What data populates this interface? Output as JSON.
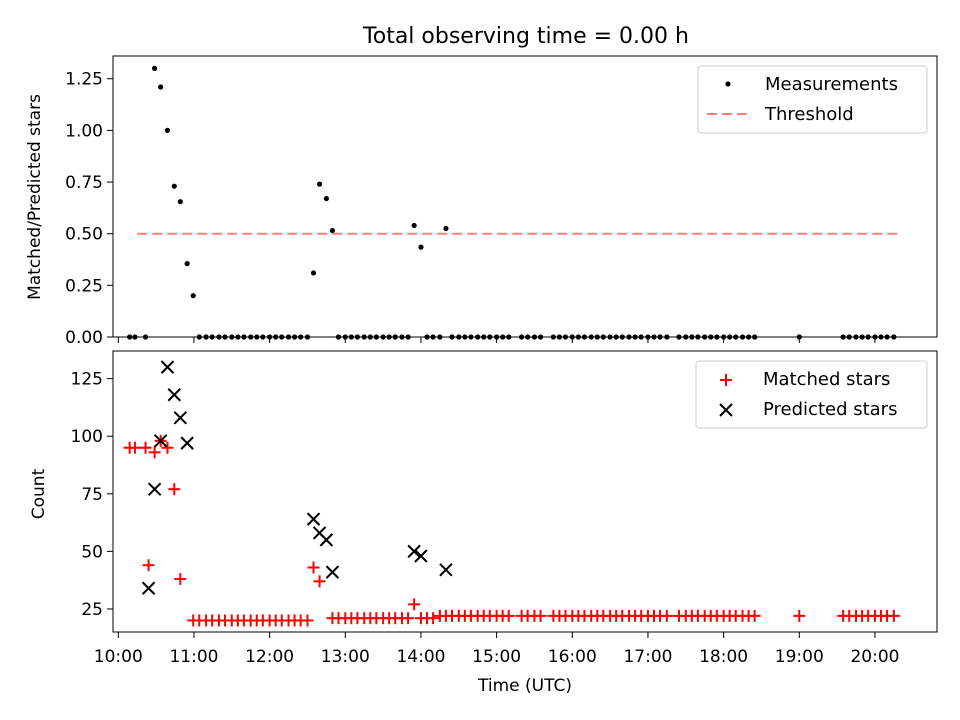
{
  "title": "Total observing time = 0.00 h",
  "chart_data": [
    {
      "type": "scatter",
      "panel": "top",
      "ylabel": "Matched/Predicted stars",
      "xlabel": "",
      "ylim": [
        0,
        1.36
      ],
      "yticks": [
        0.0,
        0.25,
        0.5,
        0.75,
        1.0,
        1.25
      ],
      "ytick_labels": [
        "0.00",
        "0.25",
        "0.50",
        "0.75",
        "1.00",
        "1.25"
      ],
      "xlim_hours": [
        9.93,
        20.82
      ],
      "threshold": {
        "value": 0.5,
        "x_range_hours": [
          10.25,
          20.3
        ],
        "color": "#ff7f7f"
      },
      "legend": {
        "position": "top-right",
        "entries": [
          {
            "label": "Measurements",
            "marker": "dot",
            "color": "#000000"
          },
          {
            "label": "Threshold",
            "marker": "dash",
            "color": "#ff7f7f"
          }
        ]
      },
      "series": [
        {
          "name": "Measurements",
          "color": "#000000",
          "points": [
            [
              10.15,
              0
            ],
            [
              10.22,
              0
            ],
            [
              10.36,
              0
            ],
            [
              10.48,
              1.3
            ],
            [
              10.56,
              1.21
            ],
            [
              10.65,
              1.0
            ],
            [
              10.74,
              0.73
            ],
            [
              10.82,
              0.655
            ],
            [
              10.91,
              0.355
            ],
            [
              10.99,
              0.2
            ],
            [
              11.07,
              0
            ],
            [
              11.16,
              0
            ],
            [
              11.24,
              0
            ],
            [
              11.33,
              0
            ],
            [
              11.41,
              0
            ],
            [
              11.5,
              0
            ],
            [
              11.58,
              0
            ],
            [
              11.66,
              0
            ],
            [
              11.75,
              0
            ],
            [
              11.83,
              0
            ],
            [
              11.91,
              0
            ],
            [
              12.0,
              0
            ],
            [
              12.08,
              0
            ],
            [
              12.16,
              0
            ],
            [
              12.25,
              0
            ],
            [
              12.33,
              0
            ],
            [
              12.41,
              0
            ],
            [
              12.5,
              0
            ],
            [
              12.58,
              0.31
            ],
            [
              12.66,
              0.74
            ],
            [
              12.75,
              0.67
            ],
            [
              12.83,
              0.515
            ],
            [
              12.91,
              0
            ],
            [
              13.0,
              0
            ],
            [
              13.08,
              0
            ],
            [
              13.16,
              0
            ],
            [
              13.25,
              0
            ],
            [
              13.33,
              0
            ],
            [
              13.41,
              0
            ],
            [
              13.5,
              0
            ],
            [
              13.58,
              0
            ],
            [
              13.66,
              0
            ],
            [
              13.75,
              0
            ],
            [
              13.83,
              0
            ],
            [
              13.91,
              0.54
            ],
            [
              14.0,
              0.435
            ],
            [
              14.08,
              0
            ],
            [
              14.16,
              0
            ],
            [
              14.25,
              0
            ],
            [
              14.33,
              0.525
            ],
            [
              14.41,
              0
            ],
            [
              14.5,
              0
            ],
            [
              14.58,
              0
            ],
            [
              14.66,
              0
            ],
            [
              14.75,
              0
            ],
            [
              14.83,
              0
            ],
            [
              14.91,
              0
            ],
            [
              15.0,
              0
            ],
            [
              15.08,
              0
            ],
            [
              15.16,
              0
            ],
            [
              15.33,
              0
            ],
            [
              15.41,
              0
            ],
            [
              15.5,
              0
            ],
            [
              15.58,
              0
            ],
            [
              15.75,
              0
            ],
            [
              15.83,
              0
            ],
            [
              15.91,
              0
            ],
            [
              16.0,
              0
            ],
            [
              16.08,
              0
            ],
            [
              16.16,
              0
            ],
            [
              16.25,
              0
            ],
            [
              16.33,
              0
            ],
            [
              16.41,
              0
            ],
            [
              16.5,
              0
            ],
            [
              16.58,
              0
            ],
            [
              16.66,
              0
            ],
            [
              16.75,
              0
            ],
            [
              16.83,
              0
            ],
            [
              16.91,
              0
            ],
            [
              17.0,
              0
            ],
            [
              17.08,
              0
            ],
            [
              17.16,
              0
            ],
            [
              17.25,
              0
            ],
            [
              17.41,
              0
            ],
            [
              17.5,
              0
            ],
            [
              17.58,
              0
            ],
            [
              17.66,
              0
            ],
            [
              17.75,
              0
            ],
            [
              17.83,
              0
            ],
            [
              17.91,
              0
            ],
            [
              18.0,
              0
            ],
            [
              18.08,
              0
            ],
            [
              18.16,
              0
            ],
            [
              18.25,
              0
            ],
            [
              18.33,
              0
            ],
            [
              18.41,
              0
            ],
            [
              19.0,
              0
            ],
            [
              19.58,
              0
            ],
            [
              19.66,
              0
            ],
            [
              19.75,
              0
            ],
            [
              19.83,
              0
            ],
            [
              19.91,
              0
            ],
            [
              20.0,
              0
            ],
            [
              20.08,
              0
            ],
            [
              20.16,
              0
            ],
            [
              20.25,
              0
            ]
          ]
        }
      ]
    },
    {
      "type": "scatter",
      "panel": "bottom",
      "ylabel": "Count",
      "xlabel": "Time (UTC)",
      "ylim": [
        15,
        137
      ],
      "yticks": [
        25,
        50,
        75,
        100,
        125
      ],
      "ytick_labels": [
        "25",
        "50",
        "75",
        "100",
        "125"
      ],
      "xlim_hours": [
        9.93,
        20.82
      ],
      "xticks_hours": [
        10,
        11,
        12,
        13,
        14,
        15,
        16,
        17,
        18,
        19,
        20
      ],
      "xtick_labels": [
        "10:00",
        "11:00",
        "12:00",
        "13:00",
        "14:00",
        "15:00",
        "16:00",
        "17:00",
        "18:00",
        "19:00",
        "20:00"
      ],
      "legend": {
        "position": "top-right",
        "entries": [
          {
            "label": "Matched stars",
            "marker": "plus",
            "color": "#ff0000"
          },
          {
            "label": "Predicted stars",
            "marker": "x",
            "color": "#000000"
          }
        ]
      },
      "series": [
        {
          "name": "Matched stars",
          "marker": "plus",
          "color": "#ff0000",
          "points": [
            [
              10.15,
              95
            ],
            [
              10.22,
              95
            ],
            [
              10.36,
              95
            ],
            [
              10.4,
              44
            ],
            [
              10.48,
              93
            ],
            [
              10.56,
              98
            ],
            [
              10.65,
              95
            ],
            [
              10.74,
              77
            ],
            [
              10.82,
              38
            ],
            [
              10.99,
              20
            ],
            [
              11.07,
              20
            ],
            [
              11.16,
              20
            ],
            [
              11.24,
              20
            ],
            [
              11.33,
              20
            ],
            [
              11.41,
              20
            ],
            [
              11.5,
              20
            ],
            [
              11.58,
              20
            ],
            [
              11.66,
              20
            ],
            [
              11.75,
              20
            ],
            [
              11.83,
              20
            ],
            [
              11.91,
              20
            ],
            [
              12.0,
              20
            ],
            [
              12.08,
              20
            ],
            [
              12.16,
              20
            ],
            [
              12.25,
              20
            ],
            [
              12.33,
              20
            ],
            [
              12.41,
              20
            ],
            [
              12.5,
              20
            ],
            [
              12.58,
              43
            ],
            [
              12.66,
              37
            ],
            [
              12.83,
              21
            ],
            [
              12.91,
              21
            ],
            [
              13.0,
              21
            ],
            [
              13.08,
              21
            ],
            [
              13.16,
              21
            ],
            [
              13.25,
              21
            ],
            [
              13.33,
              21
            ],
            [
              13.41,
              21
            ],
            [
              13.5,
              21
            ],
            [
              13.58,
              21
            ],
            [
              13.66,
              21
            ],
            [
              13.75,
              21
            ],
            [
              13.83,
              21
            ],
            [
              13.91,
              27
            ],
            [
              14.0,
              21
            ],
            [
              14.08,
              21
            ],
            [
              14.16,
              21
            ],
            [
              14.25,
              22
            ],
            [
              14.33,
              22
            ],
            [
              14.41,
              22
            ],
            [
              14.5,
              22
            ],
            [
              14.58,
              22
            ],
            [
              14.66,
              22
            ],
            [
              14.75,
              22
            ],
            [
              14.83,
              22
            ],
            [
              14.91,
              22
            ],
            [
              15.0,
              22
            ],
            [
              15.08,
              22
            ],
            [
              15.16,
              22
            ],
            [
              15.33,
              22
            ],
            [
              15.41,
              22
            ],
            [
              15.5,
              22
            ],
            [
              15.58,
              22
            ],
            [
              15.75,
              22
            ],
            [
              15.83,
              22
            ],
            [
              15.91,
              22
            ],
            [
              16.0,
              22
            ],
            [
              16.08,
              22
            ],
            [
              16.16,
              22
            ],
            [
              16.25,
              22
            ],
            [
              16.33,
              22
            ],
            [
              16.41,
              22
            ],
            [
              16.5,
              22
            ],
            [
              16.58,
              22
            ],
            [
              16.66,
              22
            ],
            [
              16.75,
              22
            ],
            [
              16.83,
              22
            ],
            [
              16.91,
              22
            ],
            [
              17.0,
              22
            ],
            [
              17.08,
              22
            ],
            [
              17.16,
              22
            ],
            [
              17.25,
              22
            ],
            [
              17.41,
              22
            ],
            [
              17.5,
              22
            ],
            [
              17.58,
              22
            ],
            [
              17.66,
              22
            ],
            [
              17.75,
              22
            ],
            [
              17.83,
              22
            ],
            [
              17.91,
              22
            ],
            [
              18.0,
              22
            ],
            [
              18.08,
              22
            ],
            [
              18.16,
              22
            ],
            [
              18.25,
              22
            ],
            [
              18.33,
              22
            ],
            [
              18.41,
              22
            ],
            [
              19.0,
              22
            ],
            [
              19.58,
              22
            ],
            [
              19.66,
              22
            ],
            [
              19.75,
              22
            ],
            [
              19.83,
              22
            ],
            [
              19.91,
              22
            ],
            [
              20.0,
              22
            ],
            [
              20.08,
              22
            ],
            [
              20.16,
              22
            ],
            [
              20.25,
              22
            ]
          ]
        },
        {
          "name": "Predicted stars",
          "marker": "x",
          "color": "#000000",
          "points": [
            [
              10.4,
              34
            ],
            [
              10.48,
              77
            ],
            [
              10.56,
              98
            ],
            [
              10.65,
              130
            ],
            [
              10.74,
              118
            ],
            [
              10.82,
              108
            ],
            [
              10.91,
              97
            ],
            [
              12.58,
              64
            ],
            [
              12.66,
              58
            ],
            [
              12.75,
              55
            ],
            [
              12.83,
              41
            ],
            [
              13.91,
              50
            ],
            [
              14.0,
              48
            ],
            [
              14.33,
              42
            ]
          ]
        }
      ]
    }
  ]
}
